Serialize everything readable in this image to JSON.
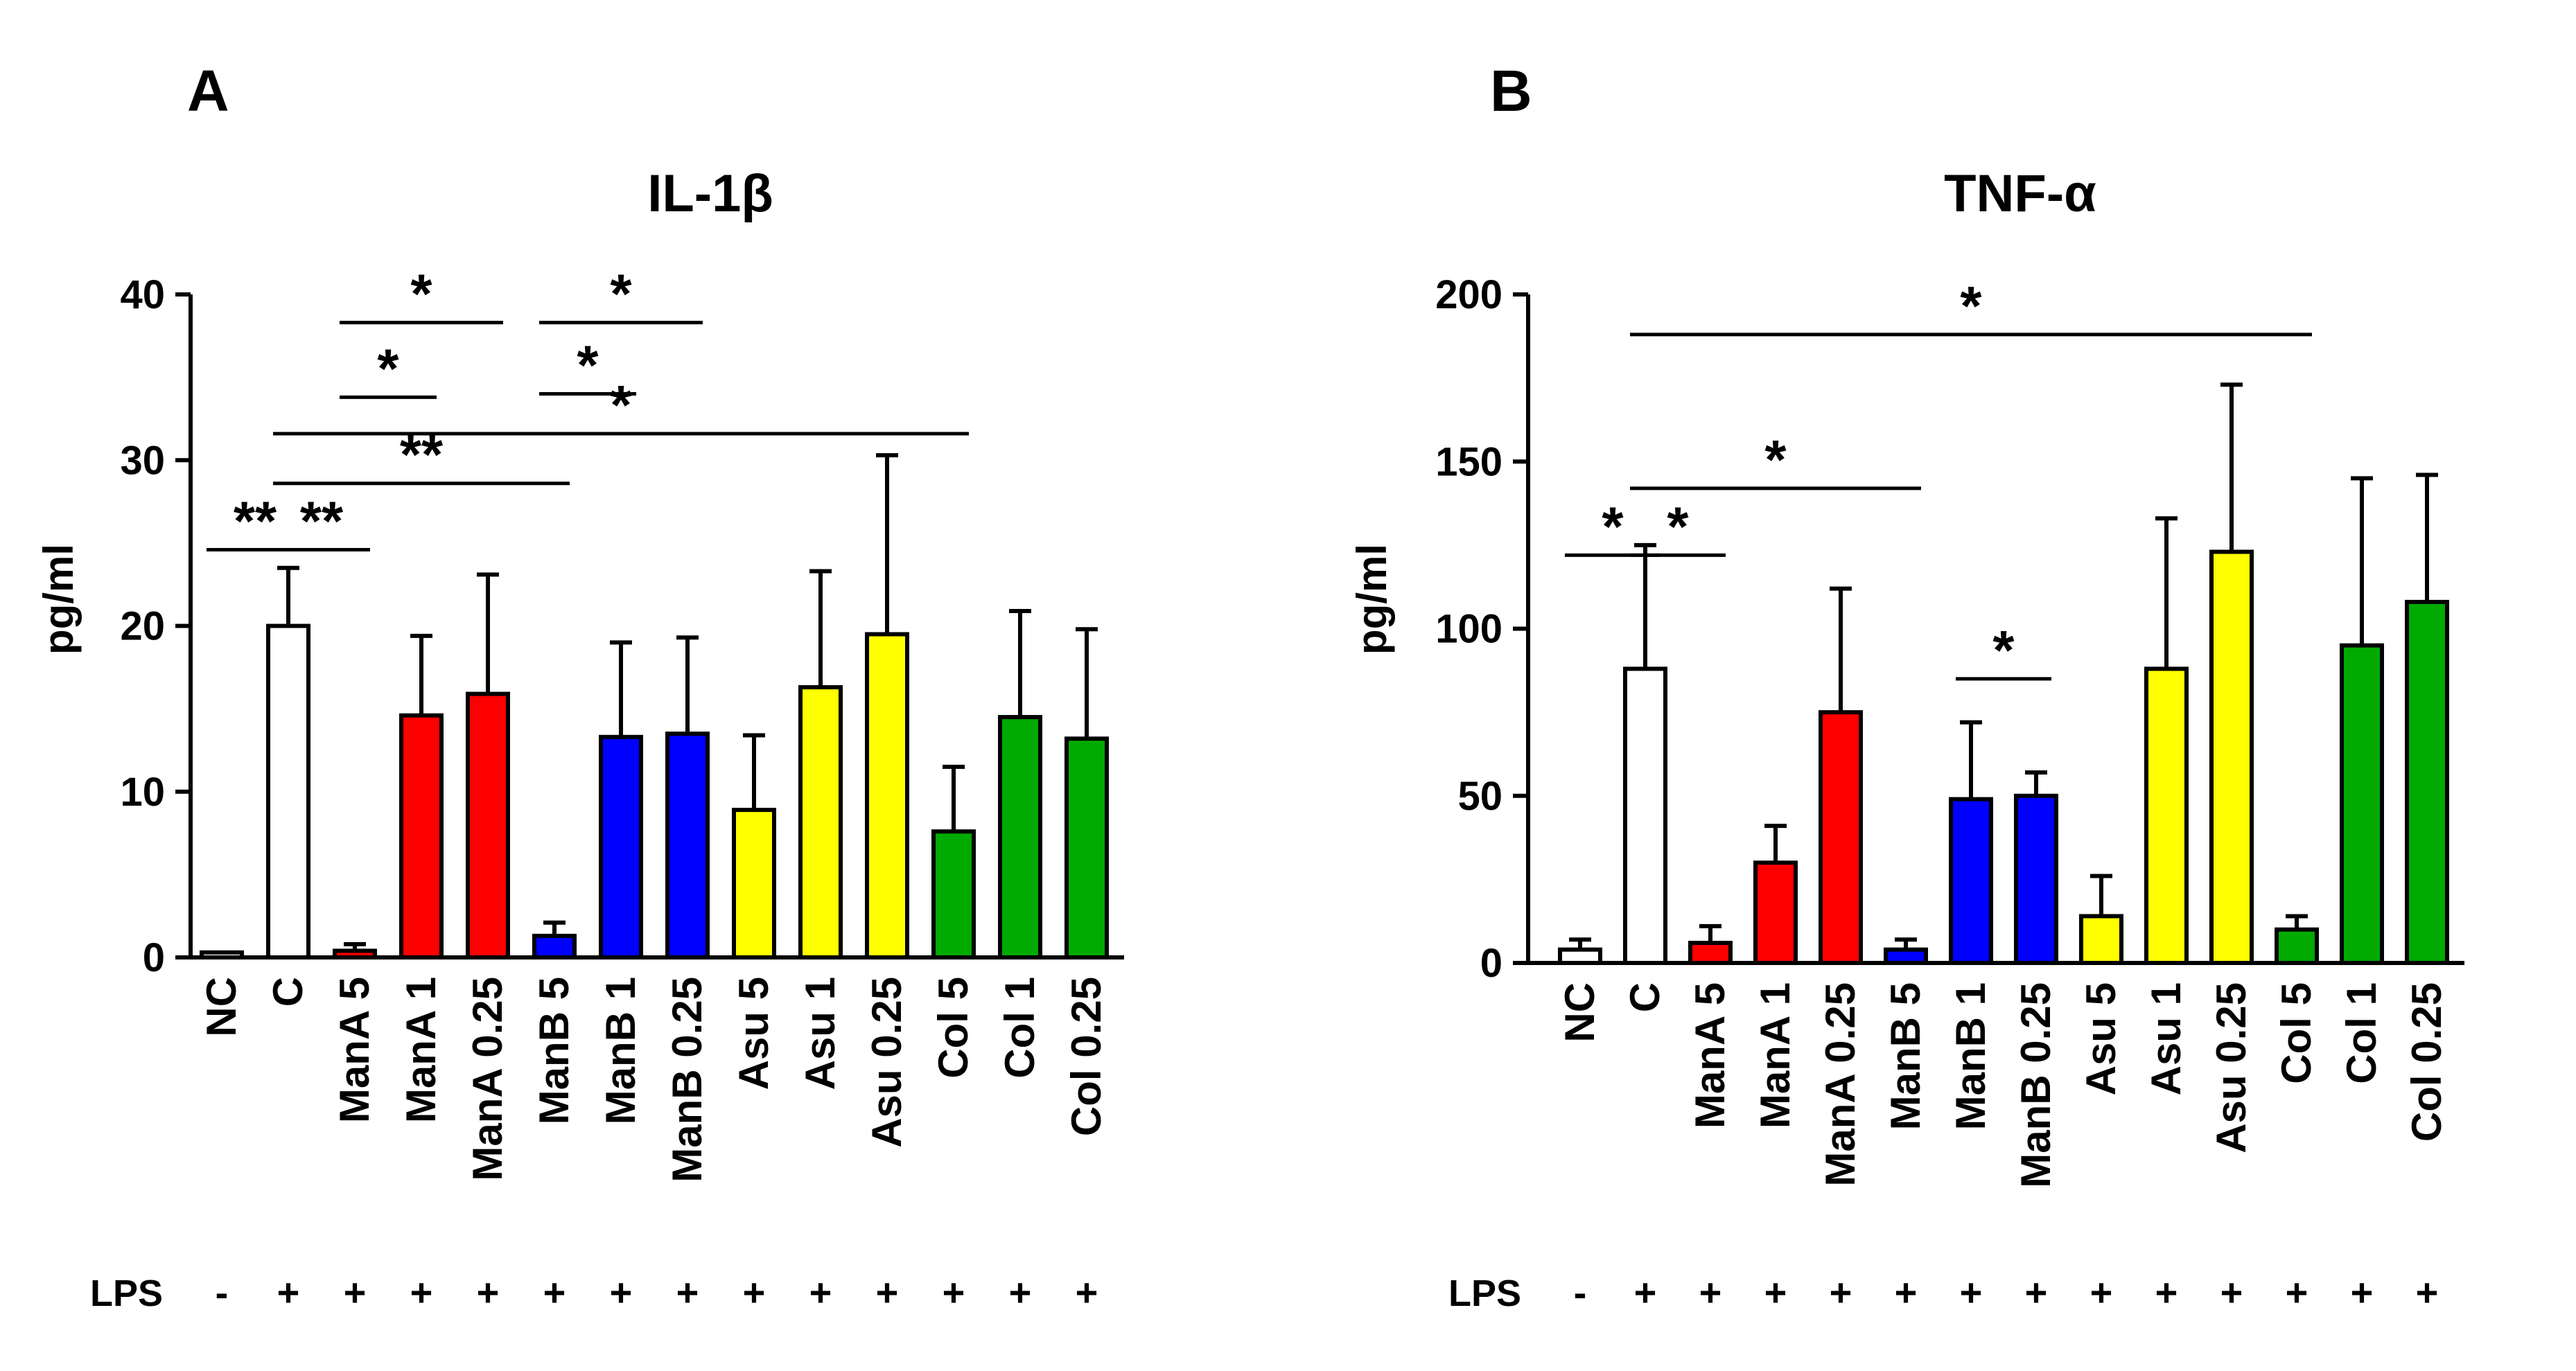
{
  "colors": {
    "white": "#ffffff",
    "red": "#ff0000",
    "blue": "#0000ff",
    "yellow": "#ffff00",
    "green": "#00aa00",
    "axis": "#000000"
  },
  "lps_label": "LPS",
  "chart_data": [
    {
      "panel": "A",
      "type": "bar",
      "title": "IL-1β",
      "xlabel": "",
      "ylabel": "pg/ml",
      "ylim": [
        0,
        40
      ],
      "yticks": [
        0,
        10,
        20,
        30,
        40
      ],
      "categories": [
        "NC",
        "C",
        "ManA 5",
        "ManA 1",
        "ManA 0.25",
        "ManB 5",
        "ManB 1",
        "ManB 0.25",
        "Asu 5",
        "Asu 1",
        "Asu 0.25",
        "Col 5",
        "Col 1",
        "Col 0.25"
      ],
      "values": [
        0.3,
        20,
        0.4,
        14.6,
        15.9,
        1.3,
        13.3,
        13.5,
        8.9,
        16.3,
        19.5,
        7.6,
        14.5,
        13.2
      ],
      "errors": [
        0,
        3.5,
        0.4,
        4.8,
        7.2,
        0.8,
        5.7,
        5.8,
        4.5,
        7.0,
        10.8,
        3.9,
        6.4,
        6.6
      ],
      "bar_colors": [
        "white",
        "white",
        "red",
        "red",
        "red",
        "blue",
        "blue",
        "blue",
        "yellow",
        "yellow",
        "yellow",
        "green",
        "green",
        "green"
      ],
      "lps": [
        "-",
        "+",
        "+",
        "+",
        "+",
        "+",
        "+",
        "+",
        "+",
        "+",
        "+",
        "+",
        "+",
        "+"
      ],
      "significance": [
        {
          "from": 0,
          "to": 1,
          "y": 24.6,
          "label": "**"
        },
        {
          "from": 1,
          "to": 2,
          "y": 24.6,
          "label": "**"
        },
        {
          "from": 1,
          "to": 5,
          "y": 28.6,
          "label": "**"
        },
        {
          "from": 1,
          "to": 11,
          "y": 31.6,
          "label": "*"
        },
        {
          "from": 2,
          "to": 3,
          "y": 33.8,
          "label": "*"
        },
        {
          "from": 2,
          "to": 4,
          "y": 38.3,
          "label": "*"
        },
        {
          "from": 5,
          "to": 6,
          "y": 34.0,
          "label": "*"
        },
        {
          "from": 5,
          "to": 7,
          "y": 38.3,
          "label": "*"
        }
      ]
    },
    {
      "panel": "B",
      "type": "bar",
      "title": "TNF-α",
      "xlabel": "",
      "ylabel": "pg/ml",
      "ylim": [
        0,
        200
      ],
      "yticks": [
        0,
        50,
        100,
        150,
        200
      ],
      "categories": [
        "NC",
        "C",
        "ManA 5",
        "ManA 1",
        "ManA 0.25",
        "ManB 5",
        "ManB 1",
        "ManB 0.25",
        "Asu 5",
        "Asu 1",
        "Asu 0.25",
        "Col 5",
        "Col 1",
        "Col 0.25"
      ],
      "values": [
        4,
        88,
        6,
        30,
        75,
        4,
        49,
        50,
        14,
        88,
        123,
        10,
        95,
        108
      ],
      "errors": [
        3,
        37,
        5,
        11,
        37,
        3,
        23,
        7,
        12,
        45,
        50,
        4,
        50,
        38
      ],
      "bar_colors": [
        "white",
        "white",
        "red",
        "red",
        "red",
        "blue",
        "blue",
        "blue",
        "yellow",
        "yellow",
        "yellow",
        "green",
        "green",
        "green"
      ],
      "lps": [
        "-",
        "+",
        "+",
        "+",
        "+",
        "+",
        "+",
        "+",
        "+",
        "+",
        "+",
        "+",
        "+",
        "+"
      ],
      "significance": [
        {
          "from": 0,
          "to": 1,
          "y": 122,
          "label": "*"
        },
        {
          "from": 1,
          "to": 2,
          "y": 122,
          "label": "*"
        },
        {
          "from": 1,
          "to": 5,
          "y": 142,
          "label": "*"
        },
        {
          "from": 1,
          "to": 11,
          "y": 188,
          "label": "*"
        },
        {
          "from": 6,
          "to": 7,
          "y": 85,
          "label": "*"
        }
      ]
    }
  ]
}
